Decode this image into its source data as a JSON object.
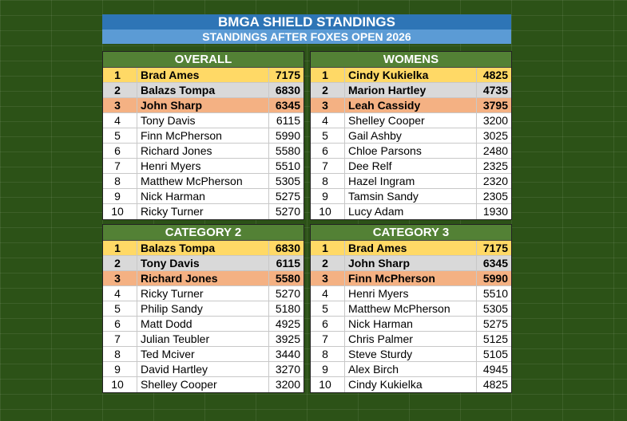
{
  "header": {
    "title": "BMGA SHIELD STANDINGS",
    "subtitle": "STANDINGS AFTER FOXES OPEN 2026"
  },
  "tables": [
    {
      "title": "OVERALL",
      "rows": [
        [
          1,
          "Brad Ames",
          7175
        ],
        [
          2,
          "Balazs Tompa",
          6830
        ],
        [
          3,
          "John Sharp",
          6345
        ],
        [
          4,
          "Tony Davis",
          6115
        ],
        [
          5,
          "Finn McPherson",
          5990
        ],
        [
          6,
          "Richard Jones",
          5580
        ],
        [
          7,
          "Henri Myers",
          5510
        ],
        [
          8,
          "Matthew McPherson",
          5305
        ],
        [
          9,
          "Nick Harman",
          5275
        ],
        [
          10,
          "Ricky Turner",
          5270
        ]
      ]
    },
    {
      "title": "WOMENS",
      "rows": [
        [
          1,
          "Cindy Kukielka",
          4825
        ],
        [
          2,
          "Marion Hartley",
          4735
        ],
        [
          3,
          "Leah Cassidy",
          3795
        ],
        [
          4,
          "Shelley Cooper",
          3200
        ],
        [
          5,
          "Gail Ashby",
          3025
        ],
        [
          6,
          "Chloe Parsons",
          2480
        ],
        [
          7,
          "Dee Relf",
          2325
        ],
        [
          8,
          "Hazel Ingram",
          2320
        ],
        [
          9,
          "Tamsin Sandy",
          2305
        ],
        [
          10,
          "Lucy Adam",
          1930
        ]
      ]
    },
    {
      "title": "CATEGORY 2",
      "rows": [
        [
          1,
          "Balazs Tompa",
          6830
        ],
        [
          2,
          "Tony Davis",
          6115
        ],
        [
          3,
          "Richard Jones",
          5580
        ],
        [
          4,
          "Ricky Turner",
          5270
        ],
        [
          5,
          "Philip Sandy",
          5180
        ],
        [
          6,
          "Matt Dodd",
          4925
        ],
        [
          7,
          "Julian Teubler",
          3925
        ],
        [
          8,
          "Ted Mciver",
          3440
        ],
        [
          9,
          "David Hartley",
          3270
        ],
        [
          10,
          "Shelley Cooper",
          3200
        ]
      ]
    },
    {
      "title": "CATEGORY 3",
      "rows": [
        [
          1,
          "Brad Ames",
          7175
        ],
        [
          2,
          "John Sharp",
          6345
        ],
        [
          3,
          "Finn McPherson",
          5990
        ],
        [
          4,
          "Henri Myers",
          5510
        ],
        [
          5,
          "Matthew McPherson",
          5305
        ],
        [
          6,
          "Nick Harman",
          5275
        ],
        [
          7,
          "Chris Palmer",
          5125
        ],
        [
          8,
          "Steve Sturdy",
          5105
        ],
        [
          9,
          "Alex Birch",
          4945
        ],
        [
          10,
          "Cindy Kukielka",
          4825
        ]
      ]
    }
  ]
}
